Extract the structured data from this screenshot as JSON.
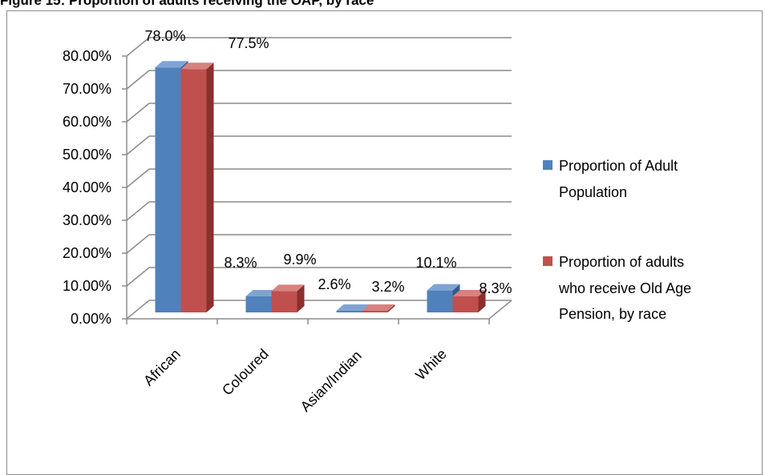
{
  "figure": {
    "caption": "Figure 15: Proportion of adults receiving the OAP, by race"
  },
  "colors": {
    "series1": "#4F81BD",
    "series1_side": "#2F5C91",
    "series1_top": "#7FA4D4",
    "series2": "#C0504D",
    "series2_side": "#8C2F2D",
    "series2_top": "#D6827F",
    "gridline": "#8C8C8C",
    "wall": "#ffffff"
  },
  "chart_data": {
    "type": "bar",
    "style": "3d-clustered-column",
    "categories": [
      "African",
      "Coloured",
      "Asian/Indian",
      "White"
    ],
    "series": [
      {
        "name": "Proportion of Adult Population",
        "legend_lines": [
          "Proportion of Adult",
          "Population"
        ],
        "values": [
          78.0,
          8.3,
          2.6,
          10.1
        ],
        "labels": [
          "78.0%",
          "8.3%",
          "2.6%",
          "10.1%"
        ]
      },
      {
        "name": "Proportion of adults who receive Old Age Pension, by race",
        "legend_lines": [
          "Proportion of adults",
          "who receive Old Age",
          "Pension, by race"
        ],
        "values": [
          77.5,
          9.9,
          3.2,
          8.3
        ],
        "labels": [
          "77.5%",
          "9.9%",
          "3.2%",
          "8.3%"
        ]
      }
    ],
    "yticks": [
      "0.00%",
      "10.00%",
      "20.00%",
      "30.00%",
      "40.00%",
      "50.00%",
      "60.00%",
      "70.00%",
      "80.00%"
    ],
    "ylim": [
      0,
      80
    ],
    "grid": true,
    "legend": "right"
  }
}
